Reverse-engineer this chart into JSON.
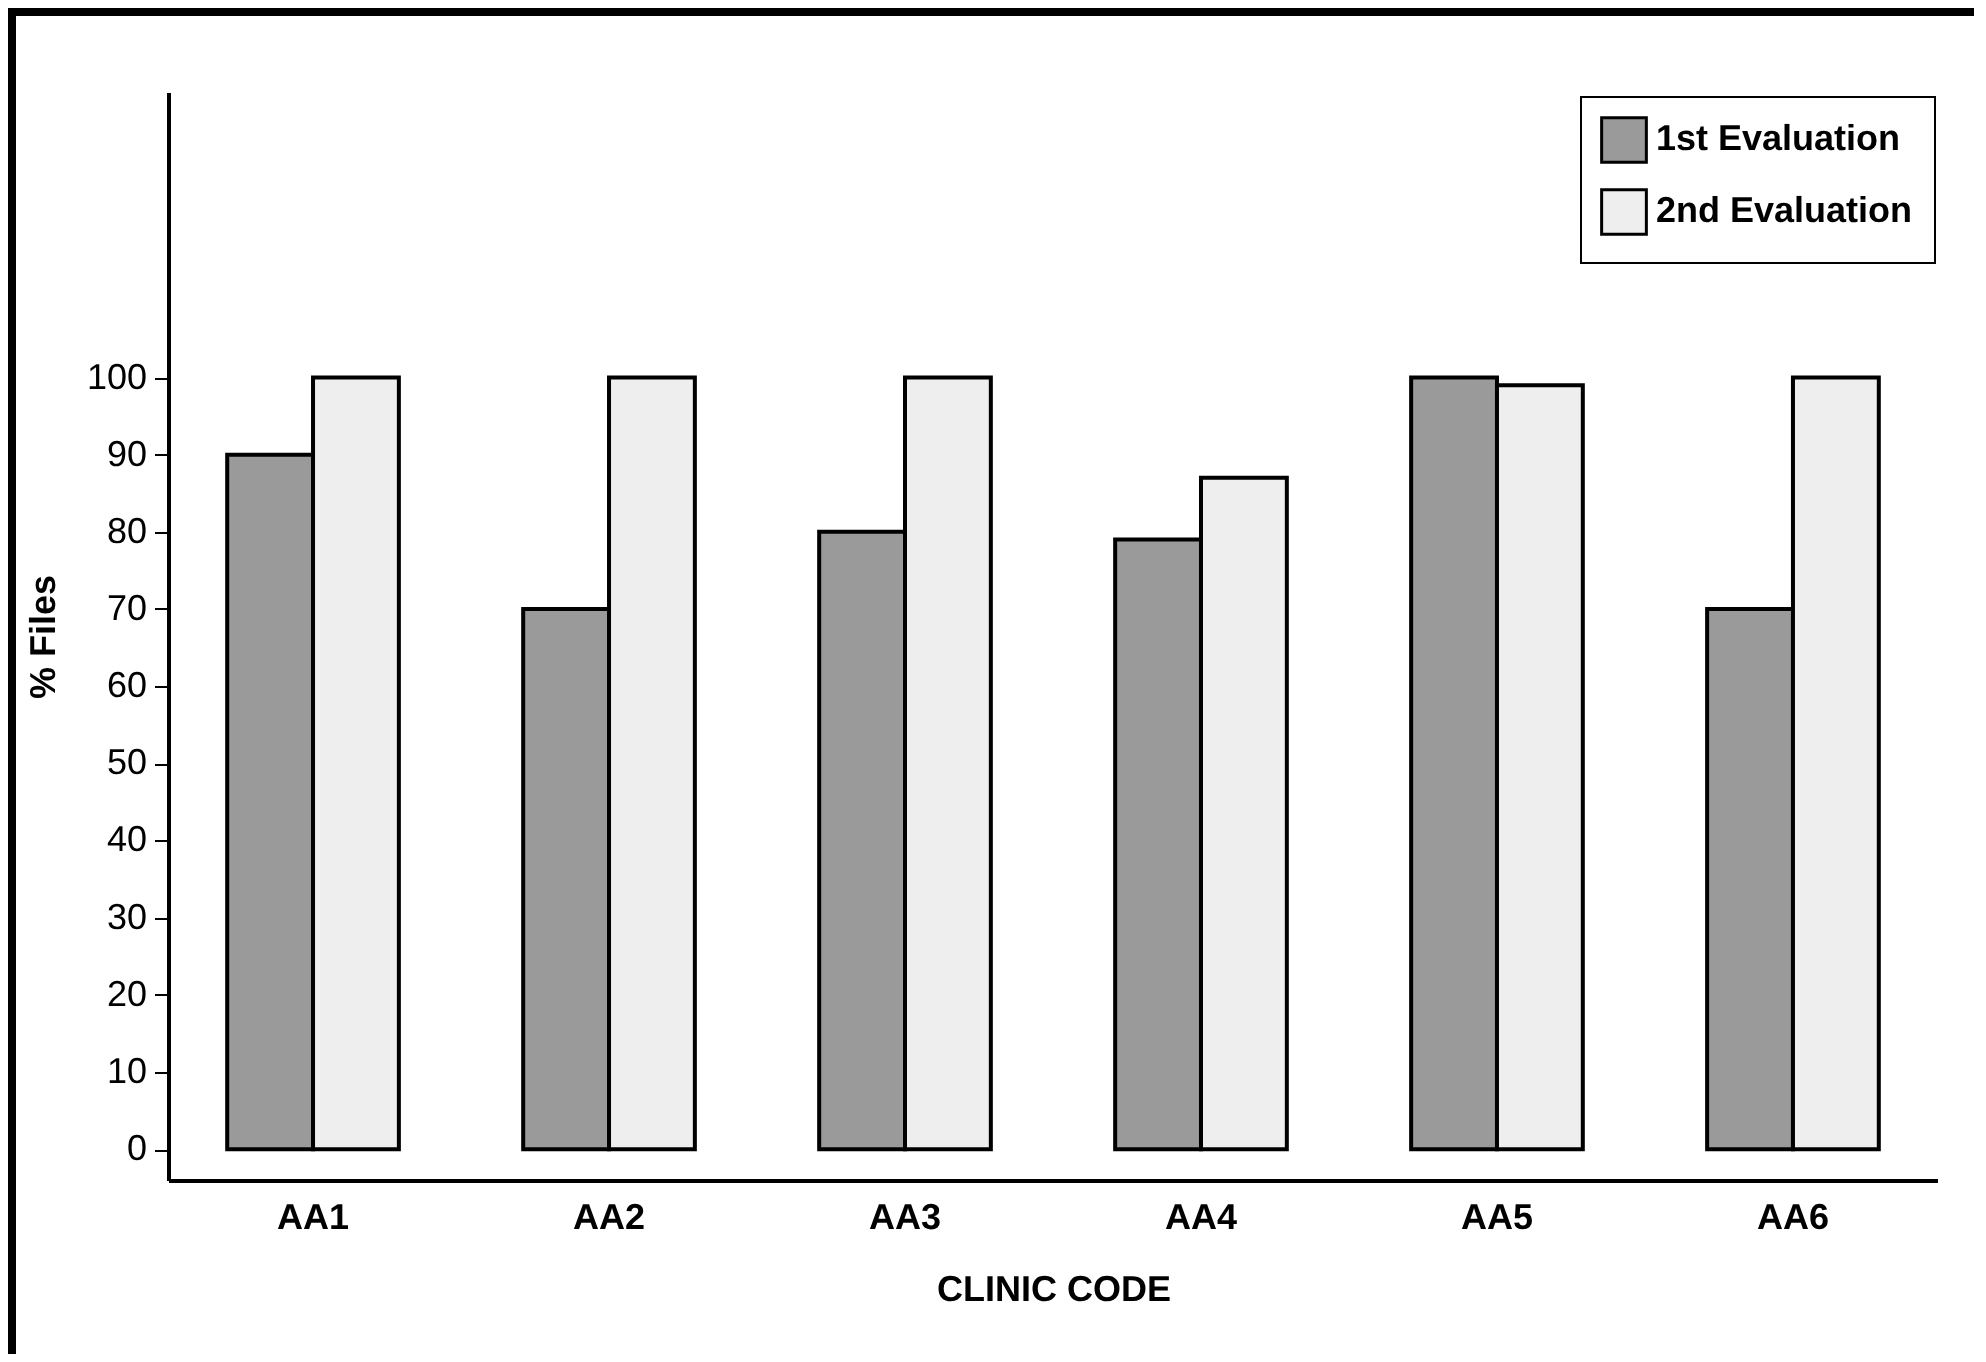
{
  "chart_data": {
    "type": "bar",
    "xlabel": "CLINIC CODE",
    "ylabel": "% Files",
    "categories": [
      "AA1",
      "AA2",
      "AA3",
      "AA4",
      "AA5",
      "AA6"
    ],
    "series": [
      {
        "name": "1st Evaluation",
        "color": "#9a9a9a",
        "values": [
          90,
          70,
          80,
          79,
          100,
          70
        ]
      },
      {
        "name": "2nd Evaluation",
        "color": "#eeeeee",
        "values": [
          100,
          100,
          100,
          87,
          99,
          100
        ]
      }
    ],
    "ylim": [
      -4,
      137
    ],
    "yticks": [
      0,
      10,
      20,
      30,
      40,
      50,
      60,
      70,
      80,
      90,
      100
    ],
    "grid": false,
    "legend": "top right"
  }
}
